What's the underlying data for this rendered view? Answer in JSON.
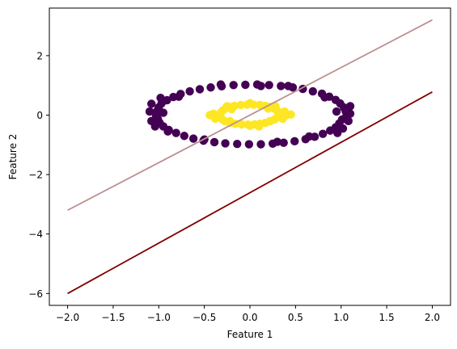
{
  "chart_data": {
    "type": "scatter",
    "title": "",
    "xlabel": "Feature 1",
    "ylabel": "Feature 2",
    "xlim": [
      -2.2,
      2.2
    ],
    "ylim": [
      -6.4,
      3.6
    ],
    "grid": false,
    "xticks": [
      -2.0,
      -1.5,
      -1.0,
      -0.5,
      0.0,
      0.5,
      1.0,
      1.5,
      2.0
    ],
    "xtick_labels": [
      "−2.0",
      "−1.5",
      "−1.0",
      "−0.5",
      "0.0",
      "0.5",
      "1.0",
      "1.5",
      "2.0"
    ],
    "yticks": [
      -6,
      -4,
      -2,
      0,
      2
    ],
    "ytick_labels": [
      "−6",
      "−4",
      "−2",
      "0",
      "2"
    ],
    "colors": {
      "outer_class": "#440154",
      "inner_class": "#fde725",
      "line_dark": "#800000",
      "line_light": "#bc8f8f"
    },
    "series": [
      {
        "kind": "scatter",
        "class": 0,
        "color": "#440154",
        "points": [
          [
            1.06,
            0.0
          ],
          [
            1.05,
            0.13
          ],
          [
            1.03,
            0.26
          ],
          [
            0.99,
            0.39
          ],
          [
            0.94,
            0.51
          ],
          [
            0.87,
            0.62
          ],
          [
            0.79,
            0.72
          ],
          [
            0.69,
            0.8
          ],
          [
            0.58,
            0.88
          ],
          [
            0.47,
            0.93
          ],
          [
            0.34,
            0.98
          ],
          [
            0.21,
            1.01
          ],
          [
            0.08,
            1.03
          ],
          [
            -0.05,
            1.02
          ],
          [
            -0.18,
            1.01
          ],
          [
            -0.31,
            0.97
          ],
          [
            -0.43,
            0.93
          ],
          [
            -0.55,
            0.87
          ],
          [
            -0.66,
            0.8
          ],
          [
            -0.76,
            0.71
          ],
          [
            -0.84,
            0.61
          ],
          [
            -0.91,
            0.5
          ],
          [
            -0.97,
            0.39
          ],
          [
            -1.0,
            0.26
          ],
          [
            -1.02,
            0.13
          ],
          [
            -1.03,
            0.0
          ],
          [
            -1.01,
            -0.13
          ],
          [
            -0.99,
            -0.26
          ],
          [
            -0.95,
            -0.38
          ],
          [
            -0.89,
            -0.5
          ],
          [
            -0.81,
            -0.6
          ],
          [
            -0.72,
            -0.7
          ],
          [
            -0.62,
            -0.79
          ],
          [
            -0.51,
            -0.86
          ],
          [
            -0.39,
            -0.91
          ],
          [
            -0.27,
            -0.95
          ],
          [
            -0.14,
            -0.97
          ],
          [
            -0.01,
            -0.98
          ],
          [
            0.12,
            -0.98
          ],
          [
            0.25,
            -0.96
          ],
          [
            0.37,
            -0.93
          ],
          [
            0.49,
            -0.88
          ],
          [
            0.61,
            -0.81
          ],
          [
            0.71,
            -0.73
          ],
          [
            0.8,
            -0.63
          ],
          [
            0.88,
            -0.52
          ],
          [
            0.94,
            -0.41
          ],
          [
            0.98,
            -0.28
          ],
          [
            1.01,
            -0.15
          ],
          [
            1.1,
            0.3
          ],
          [
            1.1,
            0.05
          ],
          [
            1.08,
            -0.2
          ],
          [
            1.02,
            -0.45
          ],
          [
            0.96,
            -0.6
          ],
          [
            -1.08,
            0.38
          ],
          [
            -1.1,
            0.12
          ],
          [
            -1.08,
            -0.2
          ],
          [
            -1.04,
            -0.38
          ],
          [
            -0.98,
            0.58
          ],
          [
            -0.9,
            -0.55
          ],
          [
            0.12,
            0.98
          ],
          [
            -0.32,
            1.03
          ],
          [
            0.42,
            0.98
          ],
          [
            0.65,
            -0.72
          ],
          [
            0.3,
            -0.9
          ],
          [
            -0.5,
            -0.82
          ],
          [
            0.82,
            0.6
          ],
          [
            -0.78,
            0.62
          ],
          [
            0.95,
            0.12
          ],
          [
            -0.95,
            0.08
          ]
        ]
      },
      {
        "kind": "scatter",
        "class": 1,
        "color": "#fde725",
        "points": [
          [
            0.32,
            0.0
          ],
          [
            0.31,
            0.08
          ],
          [
            0.3,
            0.15
          ],
          [
            0.26,
            0.22
          ],
          [
            0.22,
            0.28
          ],
          [
            0.17,
            0.31
          ],
          [
            0.11,
            0.34
          ],
          [
            0.04,
            0.35
          ],
          [
            -0.03,
            0.35
          ],
          [
            -0.1,
            0.34
          ],
          [
            -0.17,
            0.31
          ],
          [
            -0.22,
            0.27
          ],
          [
            -0.27,
            0.22
          ],
          [
            -0.3,
            0.15
          ],
          [
            -0.32,
            0.08
          ],
          [
            -0.33,
            0.0
          ],
          [
            -0.32,
            -0.08
          ],
          [
            -0.3,
            -0.15
          ],
          [
            -0.27,
            -0.21
          ],
          [
            -0.22,
            -0.26
          ],
          [
            -0.16,
            -0.29
          ],
          [
            -0.09,
            -0.31
          ],
          [
            -0.02,
            -0.32
          ],
          [
            0.05,
            -0.31
          ],
          [
            0.11,
            -0.29
          ],
          [
            0.17,
            -0.26
          ],
          [
            0.22,
            -0.21
          ],
          [
            0.27,
            -0.15
          ],
          [
            0.3,
            -0.08
          ],
          [
            0.4,
            0.0
          ],
          [
            0.38,
            0.12
          ],
          [
            0.36,
            -0.12
          ],
          [
            0.0,
            0.4
          ],
          [
            0.0,
            -0.36
          ],
          [
            -0.4,
            0.05
          ],
          [
            -0.38,
            -0.12
          ],
          [
            0.2,
            0.22
          ],
          [
            -0.2,
            0.2
          ],
          [
            0.22,
            -0.2
          ],
          [
            -0.22,
            -0.2
          ],
          [
            0.45,
            0.02
          ],
          [
            -0.44,
            0.0
          ],
          [
            0.28,
            0.3
          ],
          [
            -0.25,
            0.3
          ],
          [
            0.1,
            -0.38
          ]
        ]
      },
      {
        "kind": "line",
        "color": "#bc8f8f",
        "points": [
          [
            -2.0,
            -3.2
          ],
          [
            2.0,
            3.2
          ]
        ]
      },
      {
        "kind": "line",
        "color": "#800000",
        "points": [
          [
            -2.0,
            -6.0
          ],
          [
            2.0,
            0.78
          ]
        ]
      }
    ]
  }
}
